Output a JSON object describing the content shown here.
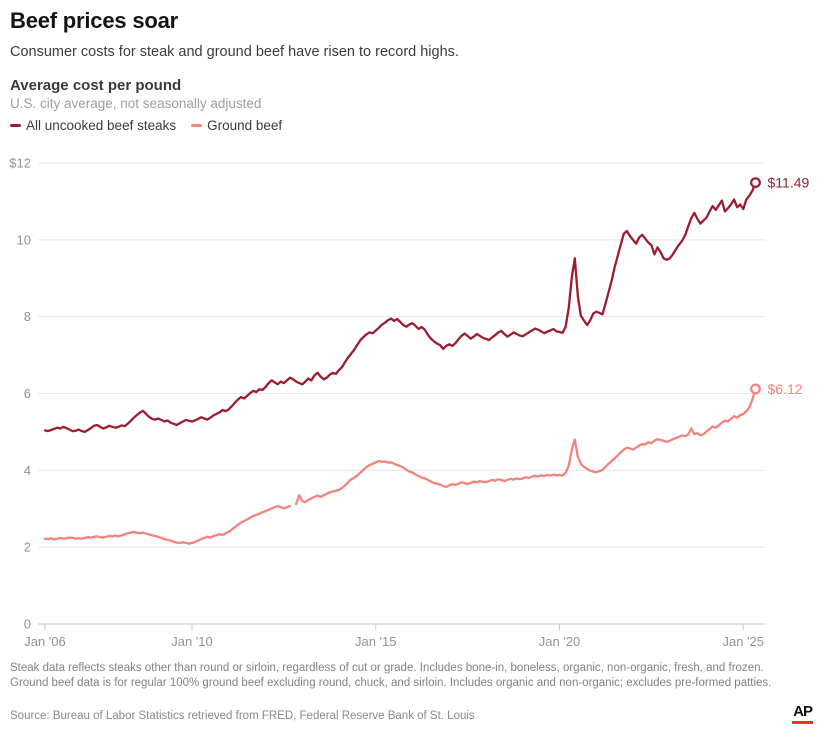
{
  "header": {
    "title": "Beef prices soar",
    "subtitle": "Consumer costs for steak and ground beef have risen to record highs."
  },
  "chart_header": {
    "title": "Average cost per pound",
    "note": "U.S. city average, not seasonally adjusted"
  },
  "legend": [
    {
      "label": "All uncooked beef steaks",
      "color": "#9b1d31"
    },
    {
      "label": "Ground beef",
      "color": "#f4837b"
    }
  ],
  "chart_data": {
    "type": "line",
    "title": "Average cost per pound",
    "subtitle": "U.S. city average, not seasonally adjusted",
    "frequency": "monthly",
    "x_start_year": 2006,
    "x_end_label_note": "data runs Jan 2006 through May 2025",
    "ylim": [
      0,
      12
    ],
    "grid": "horizontal",
    "legend_position": "top-left",
    "y_ticks": [
      {
        "label": "$12",
        "v": 12
      },
      {
        "label": "10",
        "v": 10
      },
      {
        "label": "8",
        "v": 8
      },
      {
        "label": "6",
        "v": 6
      },
      {
        "label": "4",
        "v": 4
      },
      {
        "label": "2",
        "v": 2
      },
      {
        "label": "0",
        "v": 0
      }
    ],
    "x_ticks": [
      {
        "label": "Jan '06",
        "t": 2006
      },
      {
        "label": "Jan '10",
        "t": 2010
      },
      {
        "label": "Jan '15",
        "t": 2015
      },
      {
        "label": "Jan '20",
        "t": 2020
      },
      {
        "label": "Jan '25",
        "t": 2025
      }
    ],
    "series": [
      {
        "name": "All uncooked beef steaks",
        "color": "#9b1d31",
        "end_label": "$11.49",
        "end_value": 11.49,
        "values": [
          5.04,
          5.02,
          5.05,
          5.08,
          5.11,
          5.09,
          5.13,
          5.1,
          5.06,
          5.02,
          5.03,
          5.06,
          5.02,
          5.0,
          5.05,
          5.1,
          5.16,
          5.18,
          5.13,
          5.09,
          5.12,
          5.16,
          5.13,
          5.11,
          5.13,
          5.17,
          5.15,
          5.21,
          5.29,
          5.37,
          5.44,
          5.5,
          5.55,
          5.47,
          5.39,
          5.34,
          5.32,
          5.35,
          5.31,
          5.27,
          5.3,
          5.24,
          5.21,
          5.18,
          5.23,
          5.27,
          5.31,
          5.29,
          5.27,
          5.3,
          5.34,
          5.38,
          5.35,
          5.32,
          5.37,
          5.43,
          5.47,
          5.51,
          5.57,
          5.54,
          5.59,
          5.67,
          5.76,
          5.84,
          5.91,
          5.87,
          5.94,
          6.01,
          6.07,
          6.04,
          6.11,
          6.09,
          6.17,
          6.27,
          6.34,
          6.29,
          6.24,
          6.31,
          6.27,
          6.34,
          6.41,
          6.37,
          6.31,
          6.27,
          6.24,
          6.31,
          6.39,
          6.34,
          6.47,
          6.54,
          6.44,
          6.37,
          6.41,
          6.49,
          6.54,
          6.51,
          6.61,
          6.69,
          6.82,
          6.94,
          7.04,
          7.14,
          7.27,
          7.39,
          7.47,
          7.54,
          7.59,
          7.57,
          7.64,
          7.71,
          7.79,
          7.84,
          7.91,
          7.95,
          7.89,
          7.94,
          7.86,
          7.78,
          7.74,
          7.8,
          7.83,
          7.76,
          7.68,
          7.73,
          7.66,
          7.53,
          7.43,
          7.36,
          7.3,
          7.26,
          7.16,
          7.24,
          7.28,
          7.24,
          7.31,
          7.41,
          7.5,
          7.56,
          7.5,
          7.43,
          7.48,
          7.55,
          7.5,
          7.45,
          7.42,
          7.39,
          7.46,
          7.52,
          7.59,
          7.63,
          7.55,
          7.48,
          7.53,
          7.59,
          7.55,
          7.51,
          7.49,
          7.54,
          7.59,
          7.64,
          7.69,
          7.66,
          7.62,
          7.57,
          7.61,
          7.64,
          7.68,
          7.62,
          7.6,
          7.58,
          7.74,
          8.22,
          9.02,
          9.52,
          8.52,
          8.02,
          7.9,
          7.78,
          7.9,
          8.08,
          8.13,
          8.1,
          8.06,
          8.33,
          8.63,
          8.93,
          9.28,
          9.58,
          9.88,
          10.16,
          10.23,
          10.1,
          10.0,
          9.9,
          10.06,
          10.13,
          10.03,
          9.93,
          9.86,
          9.62,
          9.8,
          9.68,
          9.52,
          9.48,
          9.52,
          9.62,
          9.75,
          9.87,
          9.97,
          10.12,
          10.34,
          10.56,
          10.7,
          10.55,
          10.42,
          10.5,
          10.58,
          10.74,
          10.88,
          10.78,
          10.9,
          11.02,
          10.74,
          10.82,
          10.92,
          11.05,
          10.85,
          10.92,
          10.8,
          11.05,
          11.15,
          11.28,
          11.49
        ]
      },
      {
        "name": "Ground beef",
        "color": "#f4837b",
        "end_label": "$6.12",
        "end_value": 6.12,
        "values": [
          2.22,
          2.21,
          2.23,
          2.2,
          2.22,
          2.24,
          2.22,
          2.23,
          2.25,
          2.24,
          2.22,
          2.23,
          2.22,
          2.24,
          2.26,
          2.25,
          2.27,
          2.28,
          2.26,
          2.25,
          2.27,
          2.29,
          2.28,
          2.3,
          2.28,
          2.31,
          2.33,
          2.36,
          2.38,
          2.4,
          2.38,
          2.36,
          2.38,
          2.35,
          2.33,
          2.31,
          2.29,
          2.27,
          2.24,
          2.21,
          2.19,
          2.17,
          2.14,
          2.12,
          2.11,
          2.13,
          2.11,
          2.09,
          2.11,
          2.14,
          2.17,
          2.21,
          2.24,
          2.27,
          2.25,
          2.29,
          2.31,
          2.34,
          2.32,
          2.36,
          2.4,
          2.46,
          2.52,
          2.58,
          2.64,
          2.68,
          2.72,
          2.77,
          2.81,
          2.84,
          2.87,
          2.91,
          2.94,
          2.97,
          3.01,
          3.04,
          3.07,
          3.04,
          3.01,
          3.04,
          3.07,
          null,
          3.12,
          3.35,
          3.2,
          3.17,
          3.23,
          3.27,
          3.31,
          3.34,
          3.31,
          3.35,
          3.39,
          3.43,
          3.45,
          3.47,
          3.49,
          3.54,
          3.61,
          3.69,
          3.77,
          3.81,
          3.87,
          3.94,
          4.01,
          4.09,
          4.14,
          4.17,
          4.21,
          4.24,
          4.22,
          4.23,
          4.2,
          4.21,
          4.17,
          4.14,
          4.11,
          4.07,
          4.01,
          3.97,
          3.94,
          3.89,
          3.85,
          3.81,
          3.79,
          3.75,
          3.71,
          3.67,
          3.65,
          3.63,
          3.59,
          3.57,
          3.61,
          3.64,
          3.62,
          3.65,
          3.69,
          3.67,
          3.64,
          3.67,
          3.71,
          3.69,
          3.72,
          3.7,
          3.69,
          3.72,
          3.75,
          3.73,
          3.77,
          3.75,
          3.72,
          3.75,
          3.78,
          3.76,
          3.79,
          3.77,
          3.79,
          3.82,
          3.8,
          3.84,
          3.86,
          3.84,
          3.87,
          3.85,
          3.88,
          3.86,
          3.89,
          3.87,
          3.88,
          3.86,
          3.94,
          4.12,
          4.54,
          4.8,
          4.34,
          4.17,
          4.09,
          4.04,
          3.99,
          3.97,
          3.95,
          3.98,
          4.01,
          4.09,
          4.17,
          4.24,
          4.31,
          4.39,
          4.47,
          4.54,
          4.59,
          4.57,
          4.54,
          4.59,
          4.64,
          4.69,
          4.67,
          4.73,
          4.71,
          4.77,
          4.81,
          4.79,
          4.77,
          4.74,
          4.77,
          4.81,
          4.84,
          4.87,
          4.91,
          4.89,
          4.93,
          5.09,
          4.94,
          4.97,
          4.91,
          4.94,
          5.01,
          5.07,
          5.14,
          5.11,
          5.17,
          5.24,
          5.29,
          5.27,
          5.34,
          5.41,
          5.37,
          5.44,
          5.47,
          5.54,
          5.64,
          5.84,
          6.12
        ]
      }
    ]
  },
  "footer": {
    "note": "Steak data reflects steaks other than round or sirloin, regardless of cut or grade. Includes bone-in, boneless, organic, non-organic, fresh, and frozen. Ground beef data is for regular 100% ground beef excluding round, chuck, and sirloin. Includes organic and non-organic; excludes pre-formed patties.",
    "source": "Source: Bureau of Labor Statistics retrieved from FRED, Federal Reserve Bank of St. Louis",
    "logo": "AP"
  }
}
